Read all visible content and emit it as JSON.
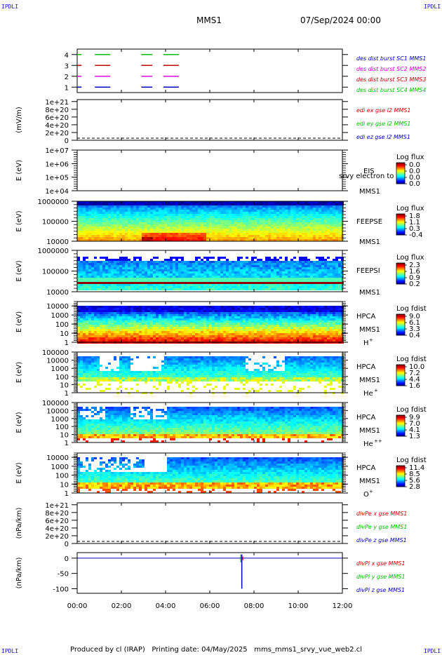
{
  "header": {
    "corner_label": "IPDLI",
    "title": "MMS1",
    "date": "07/Sep/2024 00:00"
  },
  "footer": {
    "produced_by": "Produced by cl (IRAP)",
    "printing_date": "Printing date: 04/May/2025",
    "script_name": "mms_mms1_srvy_vue_web2.cl"
  },
  "colors": {
    "red": "#e00000",
    "green": "#00c000",
    "blue": "#0000c0",
    "magenta": "#e000e0",
    "dark_red": "#c00000"
  },
  "chart_data": [
    {
      "type": "line",
      "panel": "burst",
      "yticks": [
        "1",
        "2",
        "3",
        "4"
      ],
      "ylim": [
        0.5,
        4.5
      ],
      "xlim": [
        0,
        12
      ],
      "series": [
        {
          "name": "des dist burst SC1 MMS1",
          "color": "#0000c0",
          "y": 1,
          "intervals": [
            [
              0.0,
              0.2
            ],
            [
              0.8,
              1.5
            ],
            [
              2.9,
              3.4
            ],
            [
              3.9,
              4.6
            ]
          ]
        },
        {
          "name": "des dist burst SC2 MMS2",
          "color": "#e000e0",
          "y": 2,
          "intervals": [
            [
              0.0,
              0.2
            ],
            [
              0.8,
              1.5
            ],
            [
              2.9,
              3.4
            ],
            [
              3.9,
              4.6
            ]
          ]
        },
        {
          "name": "des dist burst SC3 MMS3",
          "color": "#c00000",
          "y": 3,
          "intervals": [
            [
              0.0,
              0.2
            ],
            [
              0.8,
              1.5
            ],
            [
              2.9,
              3.4
            ],
            [
              3.9,
              4.6
            ]
          ]
        },
        {
          "name": "des dist burst SC4 MMS4",
          "color": "#00c000",
          "y": 4,
          "intervals": [
            [
              0.0,
              0.2
            ],
            [
              0.8,
              1.5
            ],
            [
              2.9,
              3.4
            ],
            [
              3.9,
              4.6
            ]
          ]
        }
      ]
    },
    {
      "type": "line",
      "panel": "edi",
      "ylabel": "(mV/m)",
      "yticks": [
        "0",
        "2e+20",
        "4e+20",
        "6e+20",
        "8e+20",
        "1e+21"
      ],
      "ylim": [
        0,
        1.05e+21
      ],
      "dashed_zero": true,
      "series": [
        {
          "name": "edi ex gse l2 MMS1",
          "color": "#e00000"
        },
        {
          "name": "edi ey gse l2 MMS1",
          "color": "#00c000"
        },
        {
          "name": "edi ez gse l2 MMS1",
          "color": "#0000c0"
        }
      ]
    },
    {
      "type": "heatmap",
      "panel": "eis",
      "ylabel": "E (eV)",
      "scale": "log",
      "yticks": [
        "1e+04",
        "1e+05",
        "1e+06",
        "1e+07"
      ],
      "ylim": [
        10000.0,
        10000000.0
      ],
      "instrument": "EIS",
      "extra_label": "srvy electron to",
      "spacecraft": "MMS1",
      "colorbar": {
        "title": "Log flux",
        "ticks": [
          "0.0",
          "0.0",
          "0.0",
          "0.0"
        ]
      },
      "empty": true
    },
    {
      "type": "heatmap",
      "panel": "feepse",
      "ylabel": "E (eV)",
      "scale": "log",
      "yticks": [
        "10000",
        "100000",
        "1000000"
      ],
      "ylim": [
        10000.0,
        1000000.0
      ],
      "instrument": "FEEPSE",
      "spacecraft": "MMS1",
      "colorbar": {
        "title": "Log flux",
        "ticks": [
          "1.8",
          "1.1",
          "0.3",
          "-0.4"
        ]
      }
    },
    {
      "type": "heatmap",
      "panel": "feepsi",
      "ylabel": "E (eV)",
      "scale": "log",
      "yticks": [
        "10000",
        "100000",
        "1000000"
      ],
      "ylim": [
        10000.0,
        1000000.0
      ],
      "instrument": "FEEPSI",
      "spacecraft": "MMS1",
      "colorbar": {
        "title": "Log flux",
        "ticks": [
          "2.3",
          "1.6",
          "0.9",
          "0.2"
        ]
      }
    },
    {
      "type": "heatmap",
      "panel": "hpca_h",
      "ylabel": "E (eV)",
      "scale": "log",
      "yticks": [
        "1",
        "10",
        "100",
        "1000",
        "10000"
      ],
      "ylim": [
        1,
        30000
      ],
      "instrument": "HPCA",
      "spacecraft": "MMS1",
      "species": "H",
      "species_sup": "+",
      "colorbar": {
        "title": "Log fdist",
        "ticks": [
          "9.0",
          "6.1",
          "3.3",
          "0.4"
        ]
      }
    },
    {
      "type": "heatmap",
      "panel": "hpca_he",
      "ylabel": "E (eV)",
      "scale": "log",
      "yticks": [
        "1",
        "10",
        "100",
        "1000",
        "10000",
        "100000"
      ],
      "ylim": [
        1,
        100000
      ],
      "instrument": "HPCA",
      "spacecraft": "MMS1",
      "species": "He",
      "species_sup": "+",
      "colorbar": {
        "title": "Log fdist",
        "ticks": [
          "10.0",
          "7.2",
          "4.4",
          "1.6"
        ]
      }
    },
    {
      "type": "heatmap",
      "panel": "hpca_hepp",
      "ylabel": "E (eV)",
      "scale": "log",
      "yticks": [
        "1",
        "10",
        "100",
        "1000",
        "10000",
        "100000"
      ],
      "ylim": [
        1,
        100000
      ],
      "instrument": "HPCA",
      "spacecraft": "MMS1",
      "species": "He",
      "species_sup": "++",
      "colorbar": {
        "title": "Log fdist",
        "ticks": [
          "9.9",
          "7.0",
          "4.1",
          "1.3"
        ]
      }
    },
    {
      "type": "heatmap",
      "panel": "hpca_o",
      "ylabel": "E (eV)",
      "scale": "log",
      "yticks": [
        "1",
        "10",
        "100",
        "1000",
        "10000"
      ],
      "ylim": [
        1,
        30000
      ],
      "instrument": "HPCA",
      "spacecraft": "MMS1",
      "species": "O",
      "species_sup": "+",
      "colorbar": {
        "title": "Log fdist",
        "ticks": [
          "11.4",
          "8.5",
          "5.6",
          "2.8"
        ]
      }
    },
    {
      "type": "line",
      "panel": "divpe",
      "ylabel": "(nPa/km)",
      "yticks": [
        "0",
        "2e+20",
        "4e+20",
        "6e+20",
        "8e+20",
        "1e+21"
      ],
      "ylim": [
        0,
        1.05e+21
      ],
      "dashed_zero": true,
      "series": [
        {
          "name": "divPe x gse MMS1",
          "color": "#e00000"
        },
        {
          "name": "divPe y gse MMS1",
          "color": "#00c000"
        },
        {
          "name": "divPe z gse MMS1",
          "color": "#0000c0"
        }
      ]
    },
    {
      "type": "line",
      "panel": "divpi",
      "ylabel": "(nPa/km)",
      "yticks": [
        "-100",
        "-50",
        "0"
      ],
      "ylim": [
        -115,
        18
      ],
      "series": [
        {
          "name": "divPi x gse MMS1",
          "color": "#e00000"
        },
        {
          "name": "divPi y gse MMS1",
          "color": "#00c000"
        },
        {
          "name": "divPi z gse MMS1",
          "color": "#0000c0"
        }
      ],
      "spike": {
        "x": 7.45,
        "ymin": -100,
        "ymax": 12
      }
    }
  ],
  "time_axis": {
    "ticks": [
      "00:00",
      "02:00",
      "04:00",
      "06:00",
      "08:00",
      "10:00",
      "12:00"
    ],
    "xlim": [
      0,
      12
    ]
  }
}
